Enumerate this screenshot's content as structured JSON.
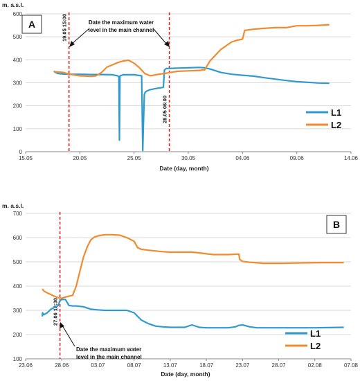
{
  "colors": {
    "L1": "#2E9AD0",
    "L2": "#F28A2E",
    "marker": "#E0201B",
    "grid": "#D9D9D9",
    "axis": "#888888"
  },
  "chart_data": [
    {
      "type": "line",
      "panel_label": "A",
      "ylabel": "m. a.s.l.",
      "xlabel": "Date (day, month)",
      "xlim": [
        0,
        30
      ],
      "ylim": [
        0,
        600
      ],
      "x_ticks": [
        0,
        5,
        10,
        15,
        20,
        25,
        30
      ],
      "x_tick_labels": [
        "15.05",
        "20.05",
        "25.05",
        "30.05",
        "04.06",
        "09.06",
        "14.06"
      ],
      "y_ticks": [
        0,
        100,
        200,
        300,
        400,
        500,
        600
      ],
      "grid": "horizontal",
      "legend": "right",
      "annotation": "Date the maximum water level in the main channel",
      "markers": [
        {
          "x": 4.0,
          "label": "19.05 15:00"
        },
        {
          "x": 13.25,
          "label": "28.05 06:00"
        }
      ],
      "series": [
        {
          "name": "L1",
          "x": [
            2.6,
            2.75,
            3.0,
            3.5,
            4.0,
            5,
            6,
            7,
            8,
            8.5,
            8.6,
            8.65,
            8.7,
            9,
            10,
            10.7,
            10.8,
            10.85,
            10.95,
            11.0,
            11.05,
            11.2,
            11.5,
            12,
            12.7,
            12.8,
            12.9,
            13,
            13.5,
            14,
            15,
            16,
            16.5,
            17,
            18,
            19,
            20,
            21,
            22,
            23,
            24,
            25,
            26,
            27,
            28
          ],
          "y": [
            350,
            345,
            340,
            338,
            337,
            337,
            336,
            336,
            335,
            330,
            325,
            50,
            330,
            335,
            335,
            330,
            5,
            100,
            250,
            255,
            260,
            265,
            270,
            275,
            280,
            355,
            360,
            362,
            363,
            364,
            365,
            367,
            365,
            360,
            345,
            337,
            333,
            329,
            322,
            316,
            310,
            305,
            302,
            299,
            298
          ]
        },
        {
          "name": "L2",
          "x": [
            2.6,
            2.75,
            3.0,
            3.5,
            4.0,
            5,
            6,
            6.5,
            7,
            7.5,
            8,
            8.5,
            9,
            9.5,
            10,
            10.5,
            11,
            11.5,
            12,
            13,
            14,
            15,
            16,
            16.5,
            17,
            18,
            19,
            19.5,
            20,
            20.05,
            20.2,
            21,
            22,
            23,
            24,
            25,
            26,
            27,
            28
          ],
          "y": [
            350,
            348,
            347,
            345,
            338,
            330,
            328,
            330,
            345,
            368,
            378,
            388,
            395,
            398,
            385,
            365,
            340,
            330,
            335,
            342,
            350,
            352,
            354,
            356,
            395,
            445,
            478,
            485,
            490,
            500,
            528,
            533,
            537,
            540,
            540,
            548,
            548,
            550,
            553
          ]
        }
      ]
    },
    {
      "type": "line",
      "panel_label": "B",
      "ylabel": "m. a.s.l.",
      "xlabel": "Date (day, month)",
      "xlim": [
        0,
        45
      ],
      "ylim": [
        100,
        700
      ],
      "x_ticks": [
        0,
        5,
        10,
        15,
        20,
        25,
        30,
        35,
        40,
        45
      ],
      "x_tick_labels": [
        "23.06",
        "28.06",
        "03.07",
        "08.07",
        "13.07",
        "18.07",
        "23.07",
        "28.07",
        "02.08",
        "07.08"
      ],
      "y_ticks": [
        100,
        200,
        300,
        400,
        500,
        600,
        700
      ],
      "grid": "horizontal",
      "legend": "bottom-right",
      "annotation": "Date the maximum water level in the main channel",
      "markers": [
        {
          "x": 4.75,
          "label": "27.06 18:30"
        }
      ],
      "series": [
        {
          "name": "L1",
          "x": [
            2.3,
            2.35,
            2.5,
            3,
            3.5,
            4,
            4.5,
            4.75,
            5,
            5.5,
            6,
            6.5,
            7,
            8,
            9,
            10,
            11,
            12,
            13,
            14,
            15,
            16,
            17,
            18,
            19,
            20,
            21,
            22,
            23,
            24,
            25,
            26,
            27,
            28,
            29,
            29.5,
            30,
            31,
            32,
            34,
            36,
            38,
            40,
            42,
            44
          ],
          "y": [
            275,
            290,
            282,
            290,
            305,
            312,
            320,
            340,
            345,
            345,
            320,
            318,
            318,
            315,
            305,
            302,
            300,
            300,
            300,
            300,
            290,
            260,
            245,
            235,
            232,
            230,
            230,
            230,
            240,
            230,
            228,
            228,
            228,
            228,
            232,
            238,
            240,
            232,
            228,
            228,
            228,
            228,
            228,
            229,
            230
          ]
        },
        {
          "name": "L2",
          "x": [
            2.3,
            2.6,
            3,
            3.5,
            4,
            4.5,
            5,
            5.5,
            6.5,
            7,
            7.5,
            8,
            8.5,
            9,
            9.5,
            10,
            10.5,
            11,
            11.5,
            12,
            13,
            14,
            15,
            15.5,
            16,
            17,
            18,
            19,
            20,
            21,
            22,
            23,
            24,
            25,
            26,
            27,
            28,
            29.5,
            29.6,
            30,
            31,
            32,
            33,
            35,
            37,
            39,
            41,
            44
          ],
          "y": [
            388,
            378,
            372,
            365,
            358,
            352,
            350,
            355,
            362,
            400,
            460,
            520,
            560,
            590,
            602,
            607,
            610,
            612,
            612,
            612,
            610,
            600,
            585,
            558,
            552,
            548,
            545,
            542,
            540,
            540,
            540,
            540,
            537,
            533,
            530,
            530,
            530,
            532,
            510,
            502,
            498,
            496,
            494,
            494,
            495,
            496,
            497,
            497
          ]
        }
      ]
    }
  ]
}
